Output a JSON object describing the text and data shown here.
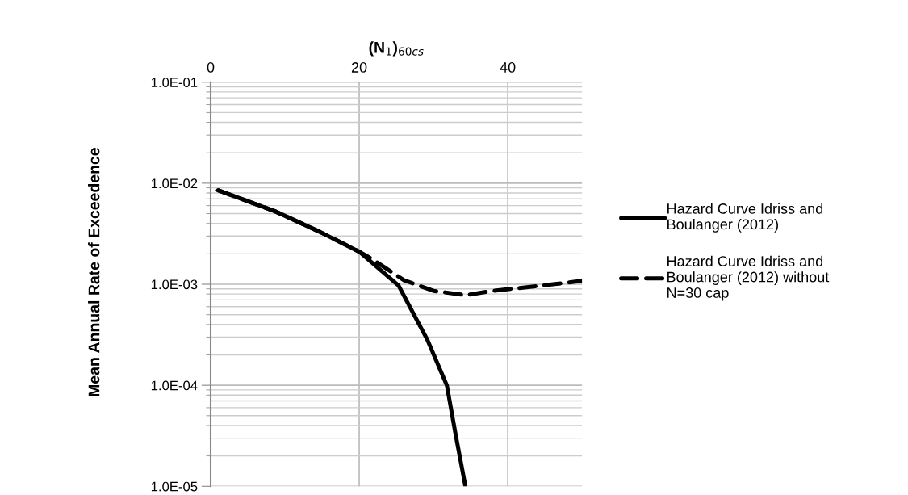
{
  "chart_data": {
    "type": "line",
    "xlabel": "(N$_{1}$)$_{60cs}$",
    "ylabel": "Mean Annual Rate of Exceedence",
    "xlim": [
      0,
      50
    ],
    "xticks": [
      0,
      20,
      40
    ],
    "log": "y",
    "ylim": [
      1e-05,
      0.1
    ],
    "yticks": [
      {
        "value": 1e-05,
        "label": "1.0E-05"
      },
      {
        "value": 0.0001,
        "label": "1.0E-04"
      },
      {
        "value": 0.001,
        "label": "1.0E-03"
      },
      {
        "value": 0.01,
        "label": "1.0E-02"
      },
      {
        "value": 0.1,
        "label": "1.0E-01"
      }
    ],
    "grid": true,
    "legend": "right",
    "marker": "none",
    "series": [
      {
        "name": "Hazard Curve Idriss and Boulanger (2012)",
        "color": "#000000",
        "line_style": "solid",
        "x": [
          1.0,
          8.6,
          14.7,
          20.0,
          25.3,
          29.2,
          31.8,
          33.0,
          34.3
        ],
        "values": [
          0.0085,
          0.0053,
          0.0033,
          0.0021,
          0.00097,
          0.00028,
          0.0001,
          3.2e-05,
          1e-05
        ]
      },
      {
        "name": "Hazard Curve Idriss and Boulanger (2012) without N=30 cap",
        "color": "#000000",
        "line_style": "dashed",
        "x": [
          1.0,
          8.6,
          14.7,
          20.0,
          21.6,
          26.0,
          30.0,
          34.3,
          38.0,
          44.0,
          49.1,
          50.0
        ],
        "values": [
          0.0085,
          0.0053,
          0.0033,
          0.0021,
          0.0018,
          0.0011,
          0.00086,
          0.00078,
          0.00086,
          0.00096,
          0.00106,
          0.00108
        ]
      }
    ]
  }
}
